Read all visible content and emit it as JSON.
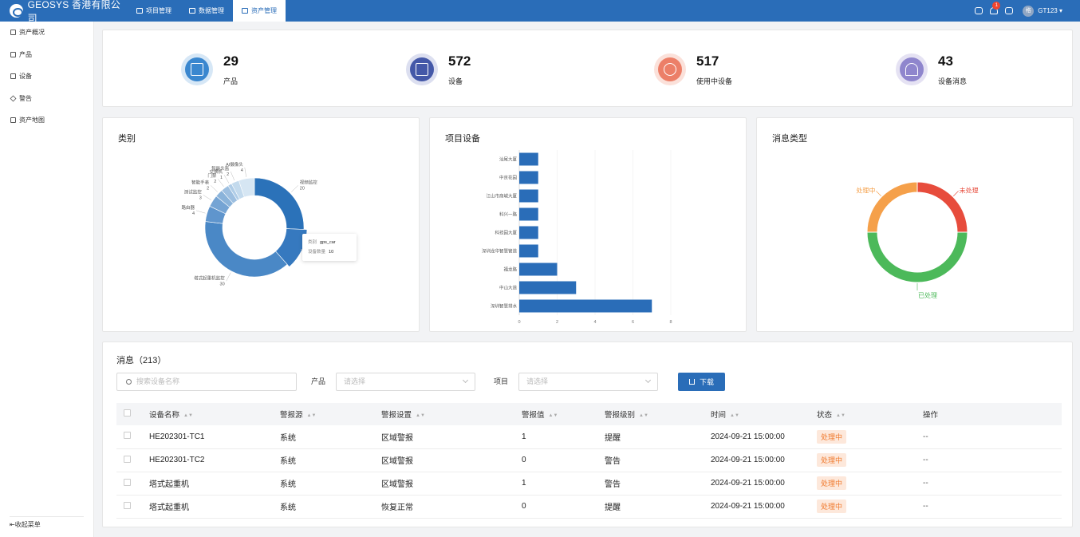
{
  "header": {
    "brand": "GEOSYS 香港有限公司",
    "nav": [
      {
        "label": "项目管理",
        "active": false
      },
      {
        "label": "数据管理",
        "active": false
      },
      {
        "label": "资产管理",
        "active": true
      }
    ],
    "notification_count": "1",
    "avatar_initial": "格",
    "user_name": "GT123"
  },
  "sidebar": {
    "items": [
      {
        "label": "资产概况",
        "icon": "monitor-icon"
      },
      {
        "label": "产品",
        "icon": "product-icon"
      },
      {
        "label": "设备",
        "icon": "device-icon"
      },
      {
        "label": "警告",
        "icon": "warning-icon"
      },
      {
        "label": "资产地图",
        "icon": "map-icon"
      }
    ],
    "collapse_label": "收起菜单"
  },
  "stats": [
    {
      "value": "29",
      "label": "产品",
      "color": "#3a87cf",
      "ring": "#d6e7f6"
    },
    {
      "value": "572",
      "label": "设备",
      "color": "#4458a8",
      "ring": "#dcdff0"
    },
    {
      "value": "517",
      "label": "使用中设备",
      "color": "#ec7f68",
      "ring": "#fbe1da"
    },
    {
      "value": "43",
      "label": "设备消息",
      "color": "#8f86cd",
      "ring": "#e5e2f3"
    }
  ],
  "category_chart": {
    "title": "类别",
    "tooltip": {
      "k1": "类别",
      "v1": "gps_car",
      "k2": "设备数量",
      "v2": "10"
    },
    "chart_data": {
      "type": "pie",
      "slices": [
        {
          "name": "视频监控",
          "value": 20
        },
        {
          "name": "钢丝绳监控",
          "value": 10
        },
        {
          "name": "塔式起重机监控",
          "value": 30
        },
        {
          "name": "路由器",
          "value": 4
        },
        {
          "name": "测试监控",
          "value": 3
        },
        {
          "name": "智能手表",
          "value": 2
        },
        {
          "name": "门禁",
          "value": 2
        },
        {
          "name": "交换机",
          "value": 1
        },
        {
          "name": "智能头盔",
          "value": 2
        },
        {
          "name": "AI摄像头",
          "value": 4
        }
      ]
    }
  },
  "project_chart": {
    "title": "项目设备",
    "chart_data": {
      "type": "bar",
      "orientation": "horizontal",
      "categories": [
        "汕尾大厦",
        "中京花园",
        "江山市商城大厦",
        "科兴一路",
        "科技园大厦",
        "深圳龙华智慧管道",
        "福龙路",
        "中山大道",
        "深圳智慧排水"
      ],
      "values": [
        1,
        1,
        1,
        1,
        1,
        1,
        2,
        3,
        7
      ],
      "xticks": [
        "0",
        "2",
        "4",
        "6",
        "8"
      ],
      "xlim": [
        0,
        8
      ]
    }
  },
  "message_chart": {
    "title": "消息类型",
    "chart_data": {
      "type": "pie",
      "slices": [
        {
          "name": "未处理",
          "value": 25,
          "color": "#e74c3c"
        },
        {
          "name": "已处理",
          "value": 50,
          "color": "#4cb95a"
        },
        {
          "name": "处理中",
          "value": 25,
          "color": "#f5a04a"
        }
      ]
    }
  },
  "messages": {
    "title": "消息（213）",
    "search_placeholder": "搜索设备名称",
    "product_label": "产品",
    "product_placeholder": "请选择",
    "project_label": "项目",
    "project_placeholder": "请选择",
    "download_label": "下载",
    "columns": [
      "设备名称",
      "警报源",
      "警报设置",
      "警报值",
      "警报级别",
      "时间",
      "状态",
      "操作"
    ],
    "rows": [
      {
        "name": "HE202301-TC1",
        "source": "系统",
        "setting": "区域警报",
        "value": "1",
        "level": "提醒",
        "time": "2024-09-21 15:00:00",
        "status": "处理中",
        "op": "--"
      },
      {
        "name": "HE202301-TC2",
        "source": "系统",
        "setting": "区域警报",
        "value": "0",
        "level": "警告",
        "time": "2024-09-21 15:00:00",
        "status": "处理中",
        "op": "--"
      },
      {
        "name": "塔式起重机",
        "source": "系统",
        "setting": "区域警报",
        "value": "1",
        "level": "警告",
        "time": "2024-09-21 15:00:00",
        "status": "处理中",
        "op": "--"
      },
      {
        "name": "塔式起重机",
        "source": "系统",
        "setting": "恢复正常",
        "value": "0",
        "level": "提醒",
        "time": "2024-09-21 15:00:00",
        "status": "处理中",
        "op": "--"
      }
    ]
  }
}
